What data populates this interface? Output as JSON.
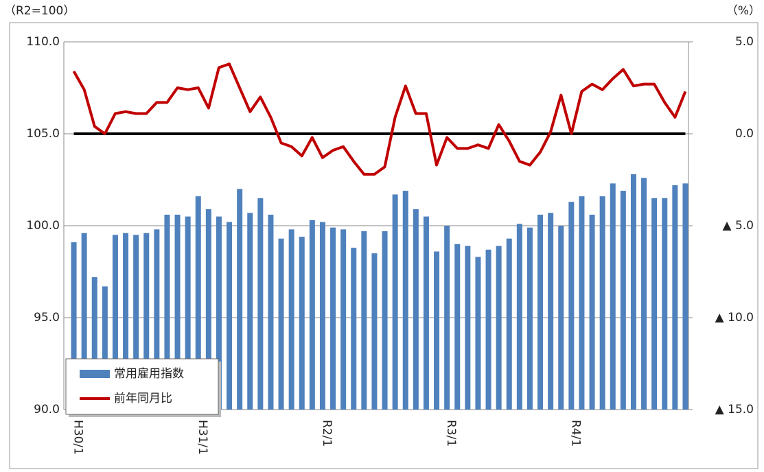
{
  "chart_data": {
    "type": "bar_line",
    "y_unit_label": "（R2=100）",
    "y2_unit_label": "（%）",
    "categories": [
      "H30/1",
      null,
      null,
      null,
      null,
      null,
      null,
      null,
      null,
      null,
      null,
      null,
      "H31/1",
      null,
      null,
      null,
      null,
      null,
      null,
      null,
      null,
      null,
      null,
      null,
      "R2/1",
      null,
      null,
      null,
      null,
      null,
      null,
      null,
      null,
      null,
      null,
      null,
      "R3/1",
      null,
      null,
      null,
      null,
      null,
      null,
      null,
      null,
      null,
      null,
      null,
      "R4/1",
      null,
      null,
      null,
      null,
      null,
      null,
      null,
      null,
      null,
      null,
      null
    ],
    "series": [
      {
        "name": "常用雇用指数",
        "type": "bar",
        "axis": "y",
        "color": "#4f81bd",
        "values": [
          99.1,
          99.6,
          97.2,
          96.7,
          99.5,
          99.6,
          99.5,
          99.6,
          99.8,
          100.6,
          100.6,
          100.5,
          101.6,
          100.9,
          100.5,
          100.2,
          102.0,
          100.7,
          101.5,
          100.6,
          99.3,
          99.8,
          99.4,
          100.3,
          100.2,
          99.9,
          99.8,
          98.8,
          99.7,
          98.5,
          99.7,
          101.7,
          101.9,
          100.9,
          100.5,
          98.6,
          100.0,
          99.0,
          98.9,
          98.3,
          98.7,
          98.9,
          99.3,
          100.1,
          99.9,
          100.6,
          100.7,
          100.0,
          101.3,
          101.6,
          100.6,
          101.6,
          102.3,
          101.9,
          102.8,
          102.6,
          101.5,
          101.5,
          102.2,
          102.3
        ]
      },
      {
        "name": "前年同月比",
        "type": "line",
        "axis": "y2",
        "color": "#c00000",
        "values": [
          3.4,
          2.4,
          0.4,
          0.0,
          1.1,
          1.2,
          1.1,
          1.1,
          1.7,
          1.7,
          2.5,
          2.4,
          2.5,
          1.4,
          3.6,
          3.8,
          2.5,
          1.2,
          2.0,
          0.9,
          -0.5,
          -0.7,
          -1.2,
          -0.2,
          -1.3,
          -0.9,
          -0.7,
          -1.5,
          -2.2,
          -2.2,
          -1.8,
          0.9,
          2.6,
          1.1,
          1.1,
          -1.7,
          -0.2,
          -0.8,
          -0.8,
          -0.6,
          -0.8,
          0.5,
          -0.4,
          -1.5,
          -1.7,
          -1.0,
          0.1,
          2.1,
          0.0,
          2.3,
          2.7,
          2.4,
          3.0,
          3.5,
          2.6,
          2.7,
          2.7,
          1.7,
          0.9,
          2.3
        ]
      }
    ],
    "ylim": [
      90,
      110
    ],
    "yticks": [
      {
        "value": 90,
        "label": "90.0"
      },
      {
        "value": 95,
        "label": "95.0"
      },
      {
        "value": 100,
        "label": "100.0"
      },
      {
        "value": 105,
        "label": "105.0"
      },
      {
        "value": 110,
        "label": "110.0"
      }
    ],
    "y2lim": [
      -15,
      5
    ],
    "y2ticks": [
      {
        "value": 5,
        "label": "5.0"
      },
      {
        "value": 0,
        "label": "0.0"
      },
      {
        "value": -5,
        "label": "▲ 5.0"
      },
      {
        "value": -10,
        "label": "▲ 10.0"
      },
      {
        "value": -15,
        "label": "▲ 15.0"
      }
    ],
    "grid": true,
    "legend": "lower-left"
  }
}
